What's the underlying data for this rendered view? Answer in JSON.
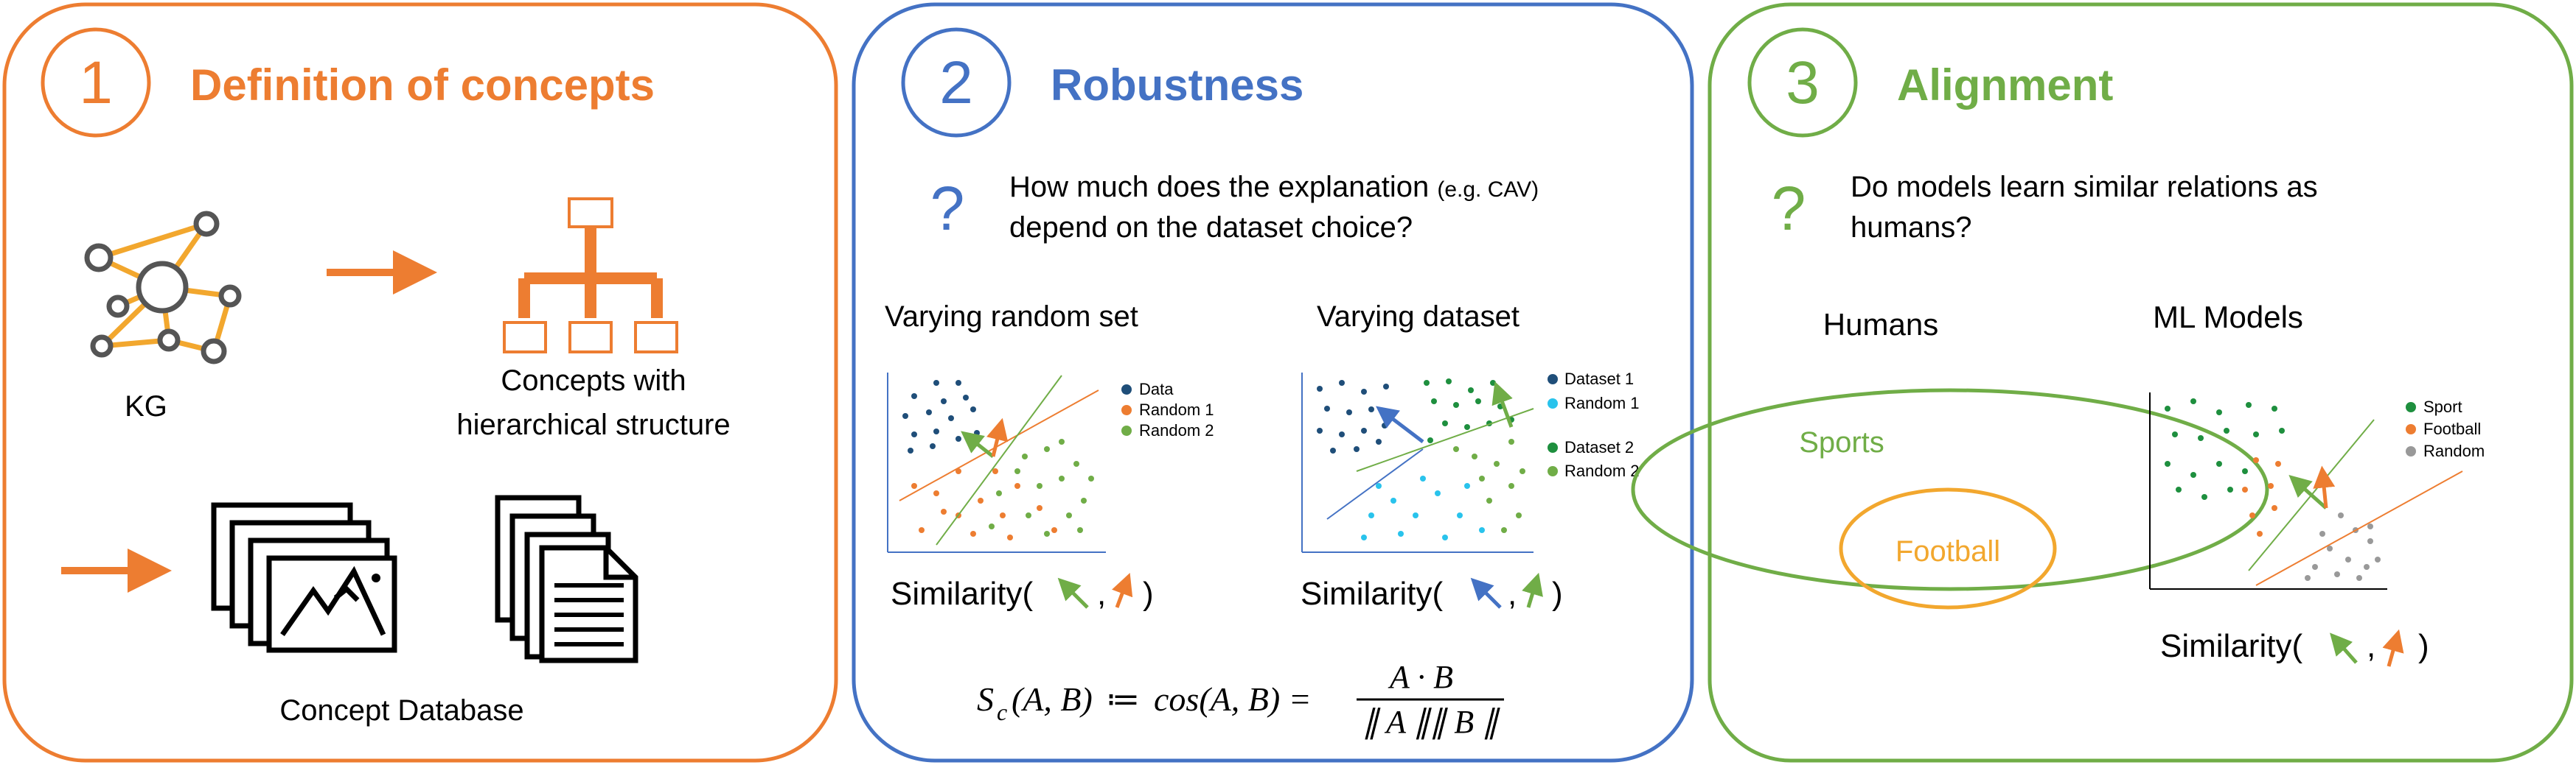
{
  "colors": {
    "orange": "#ed7d31",
    "blue": "#4472c4",
    "green": "#70ad47",
    "gold": "#f2a72e",
    "dark": "#555555",
    "navy": "#1f4e79",
    "dark_green": "#1e8f3e",
    "cyan": "#29c3ec",
    "gray": "#999999"
  },
  "panel1": {
    "number": "1",
    "title": "Definition of concepts",
    "kg_label": "KG",
    "hier_label_line1": "Concepts with",
    "hier_label_line2": "hierarchical structure",
    "db_label": "Concept Database"
  },
  "panel2": {
    "number": "2",
    "title": "Robustness",
    "question_mark": "?",
    "question_line1_main": "How much does the explanation ",
    "question_line1_small": "(e.g. CAV)",
    "question_line2": "depend on the dataset choice?",
    "left_subtitle": "Varying random set",
    "right_subtitle": "Varying dataset",
    "left_legend": [
      "Data",
      "Random 1",
      "Random 2"
    ],
    "right_legend": [
      "Dataset 1",
      "Random 1",
      "Dataset 2",
      "Random 2"
    ],
    "similarity_label": "Similarity(",
    "similarity_comma": ",",
    "similarity_close": ")",
    "formula_s": "S",
    "formula_c": "c",
    "formula_lhs_args": "(A, B)",
    "formula_assign": "≔",
    "formula_cos": "cos(A, B) =",
    "formula_num": "A · B",
    "formula_den": "∥ A ∥∥ B ∥"
  },
  "panel3": {
    "number": "3",
    "title": "Alignment",
    "question_mark": "?",
    "question_line1": "Do models learn similar relations as",
    "question_line2": "humans?",
    "humans_label": "Humans",
    "ml_label": "ML Models",
    "sports_label": "Sports",
    "football_label": "Football",
    "legend": [
      "Sport",
      "Football",
      "Random"
    ],
    "similarity_label": "Similarity(",
    "similarity_comma": ",",
    "similarity_close": ")"
  }
}
